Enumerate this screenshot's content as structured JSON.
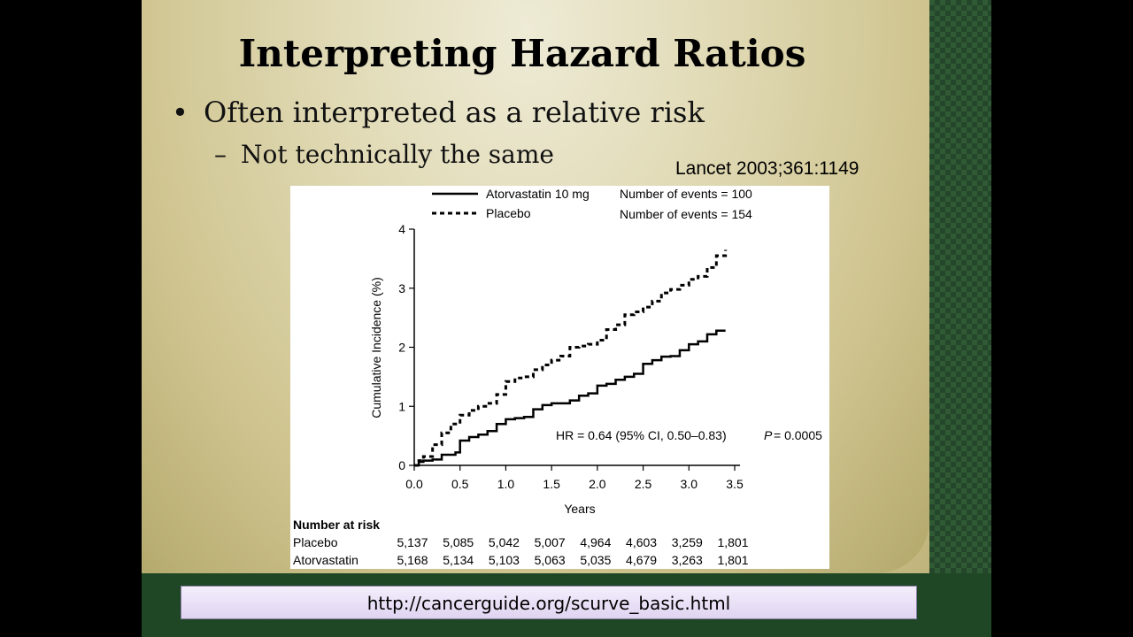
{
  "slide": {
    "title": "Interpreting Hazard Ratios",
    "bullet_1": "Often interpreted as a relative risk",
    "bullet_2": "Not technically the same",
    "bullet_marker": "•",
    "sub_marker": "–",
    "citation": "Lancet 2003;361:1149",
    "link": "http://cancerguide.org/scurve_basic.html"
  },
  "colors": {
    "frame_green": "#1f4725",
    "background_cream": "#e2dcb9",
    "link_box": "#e8ddf4"
  },
  "chart_data": {
    "type": "line",
    "title": "",
    "xlabel": "Years",
    "ylabel": "Cumulative Incidence (%)",
    "xlim": [
      0,
      3.5
    ],
    "ylim": [
      0,
      4
    ],
    "x_ticks": [
      "0.0",
      "0.5",
      "1.0",
      "1.5",
      "2.0",
      "2.5",
      "3.0",
      "3.5"
    ],
    "y_ticks": [
      "0",
      "1",
      "2",
      "3",
      "4"
    ],
    "grid": false,
    "legend_placement": "top",
    "series": [
      {
        "name": "Atorvastatin 10 mg",
        "style": "solid",
        "events_label": "Number of events = 100",
        "points": [
          [
            0,
            0
          ],
          [
            0.05,
            0.06
          ],
          [
            0.1,
            0.08
          ],
          [
            0.2,
            0.1
          ],
          [
            0.3,
            0.18
          ],
          [
            0.45,
            0.22
          ],
          [
            0.5,
            0.42
          ],
          [
            0.6,
            0.48
          ],
          [
            0.7,
            0.52
          ],
          [
            0.8,
            0.58
          ],
          [
            0.9,
            0.7
          ],
          [
            1.0,
            0.78
          ],
          [
            1.1,
            0.8
          ],
          [
            1.2,
            0.82
          ],
          [
            1.3,
            0.95
          ],
          [
            1.4,
            1.02
          ],
          [
            1.5,
            1.05
          ],
          [
            1.6,
            1.05
          ],
          [
            1.7,
            1.1
          ],
          [
            1.8,
            1.18
          ],
          [
            1.9,
            1.22
          ],
          [
            2.0,
            1.35
          ],
          [
            2.1,
            1.38
          ],
          [
            2.2,
            1.45
          ],
          [
            2.3,
            1.5
          ],
          [
            2.4,
            1.55
          ],
          [
            2.5,
            1.72
          ],
          [
            2.6,
            1.78
          ],
          [
            2.7,
            1.84
          ],
          [
            2.8,
            1.85
          ],
          [
            2.9,
            1.95
          ],
          [
            3.0,
            2.05
          ],
          [
            3.1,
            2.1
          ],
          [
            3.2,
            2.22
          ],
          [
            3.3,
            2.28
          ],
          [
            3.4,
            2.28
          ]
        ]
      },
      {
        "name": "Placebo",
        "style": "dashed",
        "events_label": "Number of events = 154",
        "points": [
          [
            0,
            0
          ],
          [
            0.05,
            0.08
          ],
          [
            0.1,
            0.15
          ],
          [
            0.2,
            0.35
          ],
          [
            0.3,
            0.55
          ],
          [
            0.4,
            0.7
          ],
          [
            0.5,
            0.85
          ],
          [
            0.6,
            0.93
          ],
          [
            0.7,
            1.0
          ],
          [
            0.8,
            1.05
          ],
          [
            0.9,
            1.2
          ],
          [
            1.0,
            1.42
          ],
          [
            1.1,
            1.48
          ],
          [
            1.2,
            1.5
          ],
          [
            1.3,
            1.62
          ],
          [
            1.4,
            1.7
          ],
          [
            1.5,
            1.78
          ],
          [
            1.6,
            1.85
          ],
          [
            1.7,
            2.0
          ],
          [
            1.8,
            2.02
          ],
          [
            1.9,
            2.05
          ],
          [
            2.0,
            2.12
          ],
          [
            2.1,
            2.3
          ],
          [
            2.2,
            2.38
          ],
          [
            2.3,
            2.55
          ],
          [
            2.4,
            2.6
          ],
          [
            2.5,
            2.68
          ],
          [
            2.6,
            2.78
          ],
          [
            2.7,
            2.92
          ],
          [
            2.8,
            2.98
          ],
          [
            2.9,
            3.05
          ],
          [
            3.0,
            3.15
          ],
          [
            3.1,
            3.2
          ],
          [
            3.2,
            3.35
          ],
          [
            3.3,
            3.55
          ],
          [
            3.4,
            3.65
          ]
        ]
      }
    ],
    "annotation": "HR = 0.64 (95% CI, 0.50–0.83)",
    "p_label": "P",
    "p_value": "= 0.0005",
    "risk_table": {
      "title": "Number at risk",
      "rows": [
        {
          "label": "Placebo",
          "values": [
            "5,137",
            "5,085",
            "5,042",
            "5,007",
            "4,964",
            "4,603",
            "3,259",
            "1,801"
          ]
        },
        {
          "label": "Atorvastatin",
          "values": [
            "5,168",
            "5,134",
            "5,103",
            "5,063",
            "5,035",
            "4,679",
            "3,263",
            "1,801"
          ]
        }
      ]
    }
  }
}
